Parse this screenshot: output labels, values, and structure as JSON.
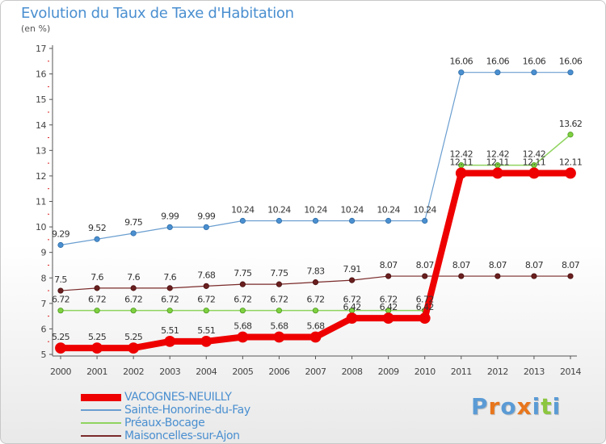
{
  "title": "Evolution du Taux de Taxe d'Habitation",
  "unit_label": "(en %)",
  "logo": {
    "text": "Proxiti",
    "colors": [
      "#5b9bd5",
      "#e8761c",
      "#5b9bd5",
      "#e8761c",
      "#5b9bd5",
      "#8cc63f",
      "#5b9bd5"
    ]
  },
  "chart_data": {
    "type": "line",
    "title": "Evolution du Taux de Taxe d'Habitation",
    "ylabel": "(en %)",
    "xlabel": "",
    "ylim": [
      5,
      17
    ],
    "yticks": [
      "5",
      "6",
      "7",
      "8",
      "9",
      "10",
      "11",
      "12",
      "13",
      "14",
      "15",
      "16",
      "17"
    ],
    "x": [
      "2000",
      "2001",
      "2002",
      "2003",
      "2004",
      "2005",
      "2006",
      "2007",
      "2008",
      "2009",
      "2010",
      "2011",
      "2012",
      "2013",
      "2014"
    ],
    "grid": false,
    "legend_position": "bottom",
    "series": [
      {
        "name": "VACOGNES-NEUILLY",
        "color": "#ee0000",
        "values": [
          5.25,
          5.25,
          5.25,
          5.51,
          5.51,
          5.68,
          5.68,
          5.68,
          6.42,
          6.42,
          6.42,
          12.11,
          12.11,
          12.11,
          12.11
        ],
        "labels": [
          "5.25",
          "5.25",
          "5.25",
          "5.51",
          "5.51",
          "5.68",
          "5.68",
          "5.68",
          "6.42",
          "6.42",
          "6.42",
          "12.11",
          "12.11",
          "12.11",
          "12.11"
        ]
      },
      {
        "name": "Sainte-Honorine-du-Fay",
        "color": "#6a9ed0",
        "values": [
          9.29,
          9.52,
          9.75,
          9.99,
          9.99,
          10.24,
          10.24,
          10.24,
          10.24,
          10.24,
          10.24,
          16.06,
          16.06,
          16.06,
          16.06
        ],
        "labels": [
          "9.29",
          "9.52",
          "9.75",
          "9.99",
          "9.99",
          "10.24",
          "10.24",
          "10.24",
          "10.24",
          "10.24",
          "10.24",
          "16.06",
          "16.06",
          "16.06",
          "16.06"
        ]
      },
      {
        "name": "Préaux-Bocage",
        "color": "#8fd45f",
        "values": [
          6.72,
          6.72,
          6.72,
          6.72,
          6.72,
          6.72,
          6.72,
          6.72,
          6.72,
          6.72,
          6.72,
          12.42,
          12.42,
          12.42,
          13.62
        ],
        "labels": [
          "6.72",
          "6.72",
          "6.72",
          "6.72",
          "6.72",
          "6.72",
          "6.72",
          "6.72",
          "6.72",
          "6.72",
          "6.72",
          "12.42",
          "12.42",
          "12.42",
          "13.62"
        ]
      },
      {
        "name": "Maisoncelles-sur-Ajon",
        "color": "#7a2a2a",
        "values": [
          7.5,
          7.6,
          7.6,
          7.6,
          7.68,
          7.75,
          7.75,
          7.83,
          7.91,
          8.07,
          8.07,
          8.07,
          8.07,
          8.07,
          8.07
        ],
        "labels": [
          "7.5",
          "7.6",
          "7.6",
          "7.6",
          "7.68",
          "7.75",
          "7.75",
          "7.83",
          "7.91",
          "8.07",
          "8.07",
          "8.07",
          "8.07",
          "8.07",
          "8.07"
        ]
      }
    ]
  }
}
